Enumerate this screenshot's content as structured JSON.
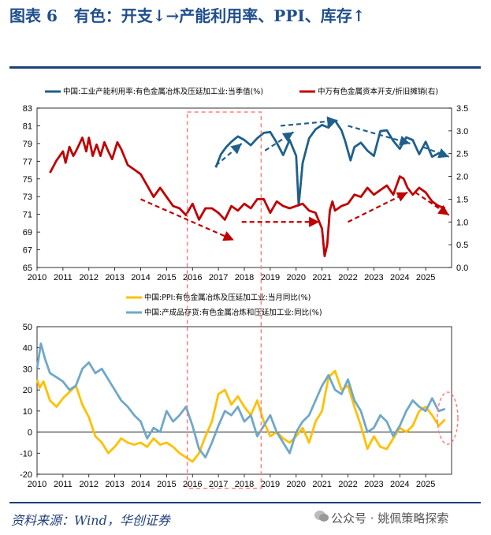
{
  "header": {
    "figure_no": "图表 6",
    "title": "有色：开支↓→产能利用率、PPI、库存↑"
  },
  "footer": {
    "source": "资料来源：Wind，华创证券",
    "watermark": "公众号 · 姚佩策略探索"
  },
  "colors": {
    "navy": "#1f5f8b",
    "red": "#c00000",
    "gold": "#ffc000",
    "lightblue": "#6fa8c8",
    "highlight": "#ff7f7f"
  },
  "chart_data": [
    {
      "type": "line",
      "panel": "top",
      "x_ticks": [
        "2010",
        "2011",
        "2012",
        "2013",
        "2014",
        "2015",
        "2016",
        "2017",
        "2018",
        "2019",
        "2020",
        "2021",
        "2022",
        "2023",
        "2024",
        "2025"
      ],
      "y_left": {
        "range": [
          65,
          83
        ],
        "ticks": [
          "65",
          "67",
          "69",
          "71",
          "73",
          "75",
          "77",
          "79",
          "81",
          "83"
        ]
      },
      "y_right": {
        "range": [
          0.0,
          3.5
        ],
        "ticks": [
          "0.0",
          "0.5",
          "1.0",
          "1.5",
          "2.0",
          "2.5",
          "3.0",
          "3.5"
        ]
      },
      "series": [
        {
          "name": "中国:工业产能利用率:有色金属冶炼及压延加工业:当季值(%)",
          "axis": "left",
          "color": "#1f5f8b",
          "x": [
            2016.9,
            2017.1,
            2017.3,
            2017.5,
            2017.75,
            2018.0,
            2018.25,
            2018.5,
            2018.75,
            2019.0,
            2019.25,
            2019.5,
            2019.75,
            2020.0,
            2020.1,
            2020.25,
            2020.5,
            2020.75,
            2021.0,
            2021.25,
            2021.5,
            2021.75,
            2021.9,
            2022.1,
            2022.25,
            2022.5,
            2022.75,
            2023.0,
            2023.25,
            2023.5,
            2023.75,
            2024.0,
            2024.25,
            2024.5,
            2024.75,
            2025.0,
            2025.25,
            2025.5,
            2025.75
          ],
          "y": [
            76.3,
            77.8,
            78.6,
            79.2,
            79.8,
            79.4,
            78.8,
            79.6,
            80.2,
            80.3,
            79.1,
            77.7,
            79.4,
            77.6,
            72.0,
            76.8,
            79.6,
            80.6,
            81.1,
            80.8,
            81.6,
            80.5,
            79.2,
            77.1,
            78.6,
            79.1,
            78.2,
            77.6,
            80.4,
            80.5,
            79.3,
            78.4,
            79.7,
            79.4,
            77.8,
            79.2,
            77.5,
            77.9,
            77.9
          ]
        },
        {
          "name": "中国:工业产能利用率:有色金属冶炼及压延加工业:当季值(%)",
          "axis": "left",
          "color": "#1f5f8b",
          "x": [],
          "y": []
        },
        {
          "name": "中万有色金属资本开支/折旧摊销(右)",
          "axis": "right",
          "color": "#c00000",
          "x": [
            2010.5,
            2010.75,
            2011.0,
            2011.1,
            2011.25,
            2011.4,
            2011.5,
            2011.75,
            2011.9,
            2012.0,
            2012.15,
            2012.3,
            2012.45,
            2012.6,
            2012.75,
            2012.9,
            2013.1,
            2013.25,
            2013.5,
            2013.75,
            2014.0,
            2014.25,
            2014.5,
            2014.75,
            2015.0,
            2015.25,
            2015.5,
            2015.75,
            2016.0,
            2016.25,
            2016.5,
            2016.75,
            2017.0,
            2017.25,
            2017.5,
            2017.75,
            2018.0,
            2018.25,
            2018.5,
            2018.75,
            2019.0,
            2019.25,
            2019.5,
            2019.75,
            2020.0,
            2020.25,
            2020.5,
            2020.75,
            2021.0,
            2021.1,
            2021.2,
            2021.3,
            2021.4,
            2021.5,
            2021.75,
            2022.0,
            2022.25,
            2022.5,
            2022.75,
            2023.0,
            2023.25,
            2023.5,
            2023.75,
            2024.0,
            2024.15,
            2024.3,
            2024.5,
            2024.75,
            2025.0,
            2025.25,
            2025.5,
            2025.75
          ],
          "y": [
            2.08,
            2.35,
            2.55,
            2.3,
            2.65,
            2.45,
            2.55,
            2.85,
            2.55,
            2.85,
            2.45,
            2.7,
            2.45,
            2.75,
            2.55,
            2.38,
            2.75,
            2.6,
            2.25,
            2.15,
            2.05,
            1.8,
            1.55,
            1.75,
            1.55,
            1.35,
            1.3,
            1.15,
            1.4,
            1.05,
            1.3,
            1.3,
            1.2,
            1.05,
            1.35,
            1.25,
            1.4,
            1.3,
            1.5,
            1.5,
            1.2,
            1.45,
            1.35,
            1.3,
            1.35,
            1.4,
            1.25,
            1.2,
            0.85,
            0.25,
            0.5,
            1.25,
            1.45,
            1.25,
            1.35,
            1.4,
            1.6,
            1.55,
            1.75,
            1.6,
            1.7,
            1.8,
            1.6,
            2.0,
            1.95,
            1.75,
            1.6,
            1.75,
            1.65,
            1.45,
            1.35,
            1.3
          ]
        }
      ],
      "highlight_period": [
        2015.8,
        2018.65
      ]
    },
    {
      "type": "line",
      "panel": "bottom",
      "x_ticks": [
        "2010",
        "2011",
        "2012",
        "2013",
        "2014",
        "2015",
        "2016",
        "2017",
        "2018",
        "2019",
        "2020",
        "2021",
        "2022",
        "2023",
        "2024",
        "2025"
      ],
      "y": {
        "range": [
          -20,
          50
        ],
        "ticks": [
          "-20",
          "-10",
          "0",
          "10",
          "20",
          "30",
          "40",
          "50"
        ]
      },
      "series": [
        {
          "name": "中国:PPI:有色金属冶炼及压延加工业:当月同比(%)",
          "color": "#ffc000",
          "x": [
            2010.0,
            2010.1,
            2010.25,
            2010.5,
            2010.75,
            2011.0,
            2011.25,
            2011.5,
            2011.75,
            2012.0,
            2012.25,
            2012.5,
            2012.75,
            2013.0,
            2013.25,
            2013.5,
            2013.75,
            2014.0,
            2014.25,
            2014.5,
            2014.75,
            2015.0,
            2015.25,
            2015.5,
            2015.75,
            2016.0,
            2016.25,
            2016.5,
            2016.75,
            2017.0,
            2017.25,
            2017.5,
            2017.75,
            2018.0,
            2018.25,
            2018.5,
            2018.75,
            2019.0,
            2019.25,
            2019.5,
            2019.75,
            2020.0,
            2020.25,
            2020.5,
            2020.75,
            2021.0,
            2021.25,
            2021.5,
            2021.75,
            2022.0,
            2022.25,
            2022.5,
            2022.75,
            2023.0,
            2023.25,
            2023.5,
            2023.75,
            2024.0,
            2024.25,
            2024.5,
            2024.75,
            2025.0,
            2025.25,
            2025.5,
            2025.75
          ],
          "y": [
            25,
            21,
            24,
            15,
            12,
            16,
            19,
            22,
            13,
            7,
            -2,
            -5,
            -10,
            -7,
            -3,
            -5,
            -6,
            -5,
            -7,
            -3,
            -6,
            -5,
            -7,
            -10,
            -12,
            -14,
            -10,
            -2,
            5,
            18,
            20,
            13,
            17,
            12,
            8,
            15,
            5,
            -2,
            0,
            -3,
            -5,
            -2,
            2,
            -5,
            5,
            10,
            26,
            29,
            20,
            22,
            12,
            3,
            -8,
            -2,
            -7,
            -8,
            -3,
            2,
            0,
            3,
            10,
            12,
            8,
            3,
            6
          ]
        },
        {
          "name": "中国:产成品存货:有色金属冶炼和压延加工业:同比(%)",
          "color": "#6fa8c8",
          "x": [
            2010.0,
            2010.15,
            2010.3,
            2010.5,
            2010.75,
            2011.0,
            2011.25,
            2011.5,
            2011.75,
            2012.0,
            2012.25,
            2012.5,
            2012.75,
            2013.0,
            2013.25,
            2013.5,
            2013.75,
            2014.0,
            2014.25,
            2014.5,
            2014.75,
            2015.0,
            2015.25,
            2015.5,
            2015.75,
            2016.0,
            2016.25,
            2016.5,
            2016.75,
            2017.0,
            2017.25,
            2017.5,
            2017.75,
            2018.0,
            2018.25,
            2018.5,
            2018.75,
            2019.0,
            2019.25,
            2019.5,
            2019.75,
            2020.0,
            2020.25,
            2020.5,
            2020.75,
            2021.0,
            2021.25,
            2021.5,
            2021.75,
            2022.0,
            2022.25,
            2022.5,
            2022.75,
            2023.0,
            2023.25,
            2023.5,
            2023.75,
            2024.0,
            2024.25,
            2024.5,
            2024.75,
            2025.0,
            2025.25,
            2025.5,
            2025.75
          ],
          "y": [
            30,
            42,
            35,
            28,
            26,
            24,
            20,
            22,
            30,
            33,
            28,
            30,
            25,
            20,
            15,
            12,
            8,
            5,
            -3,
            2,
            0,
            10,
            5,
            8,
            12,
            3,
            -8,
            -12,
            -5,
            3,
            10,
            8,
            12,
            5,
            8,
            -2,
            3,
            8,
            0,
            -5,
            -10,
            0,
            5,
            8,
            15,
            22,
            27,
            20,
            18,
            25,
            15,
            10,
            0,
            2,
            8,
            5,
            -2,
            3,
            10,
            15,
            12,
            10,
            16,
            10,
            11
          ]
        }
      ],
      "highlight_period": [
        2015.8,
        2018.65
      ]
    }
  ],
  "legend": {
    "top_series_1": "中国:工业产能利用率:有色金属冶炼及压延加工业:当季值(%)",
    "top_series_2": "中万有色金属资本开支/折旧摊销(右)",
    "bottom_series_1": "中国:PPI:有色金属冶炼及压延加工业:当月同比(%)",
    "bottom_series_2": "中国:产成品存货:有色金属冶炼和压延加工业:同比(%)"
  }
}
